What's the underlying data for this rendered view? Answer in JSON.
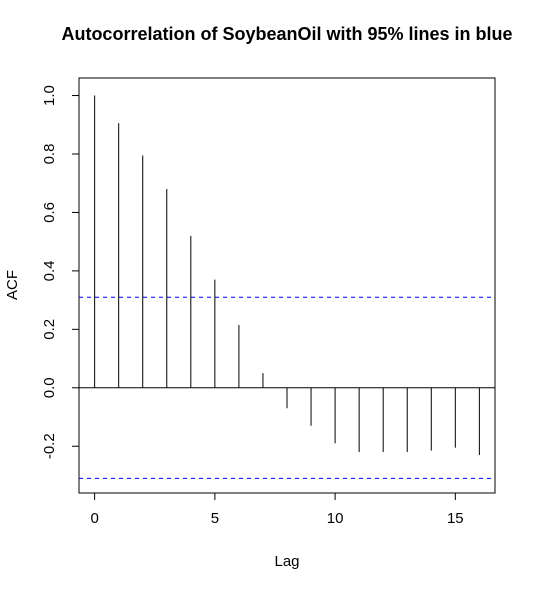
{
  "chart_data": {
    "type": "bar",
    "title": "Autocorrelation of SoybeanOil with 95% lines in blue",
    "xlabel": "Lag",
    "ylabel": "ACF",
    "xlim": [
      -0.65,
      16.65
    ],
    "ylim": [
      -0.36,
      1.06
    ],
    "x_ticks": [
      0,
      5,
      10,
      15
    ],
    "x_tick_labels": [
      "0",
      "5",
      "10",
      "15"
    ],
    "y_ticks": [
      -0.2,
      0.0,
      0.2,
      0.4,
      0.6,
      0.8,
      1.0
    ],
    "y_tick_labels": [
      "-0.2",
      "0.0",
      "0.2",
      "0.4",
      "0.6",
      "0.8",
      "1.0"
    ],
    "lags": [
      0,
      1,
      2,
      3,
      4,
      5,
      6,
      7,
      8,
      9,
      10,
      11,
      12,
      13,
      14,
      15,
      16
    ],
    "acf": [
      1.0,
      0.905,
      0.795,
      0.68,
      0.52,
      0.37,
      0.215,
      0.05,
      -0.07,
      -0.13,
      -0.19,
      -0.22,
      -0.22,
      -0.22,
      -0.215,
      -0.205,
      -0.23
    ],
    "confidence_bounds": [
      0.31,
      -0.31
    ],
    "confidence_color": "#0000ff",
    "zero_line": true,
    "grid": false
  }
}
